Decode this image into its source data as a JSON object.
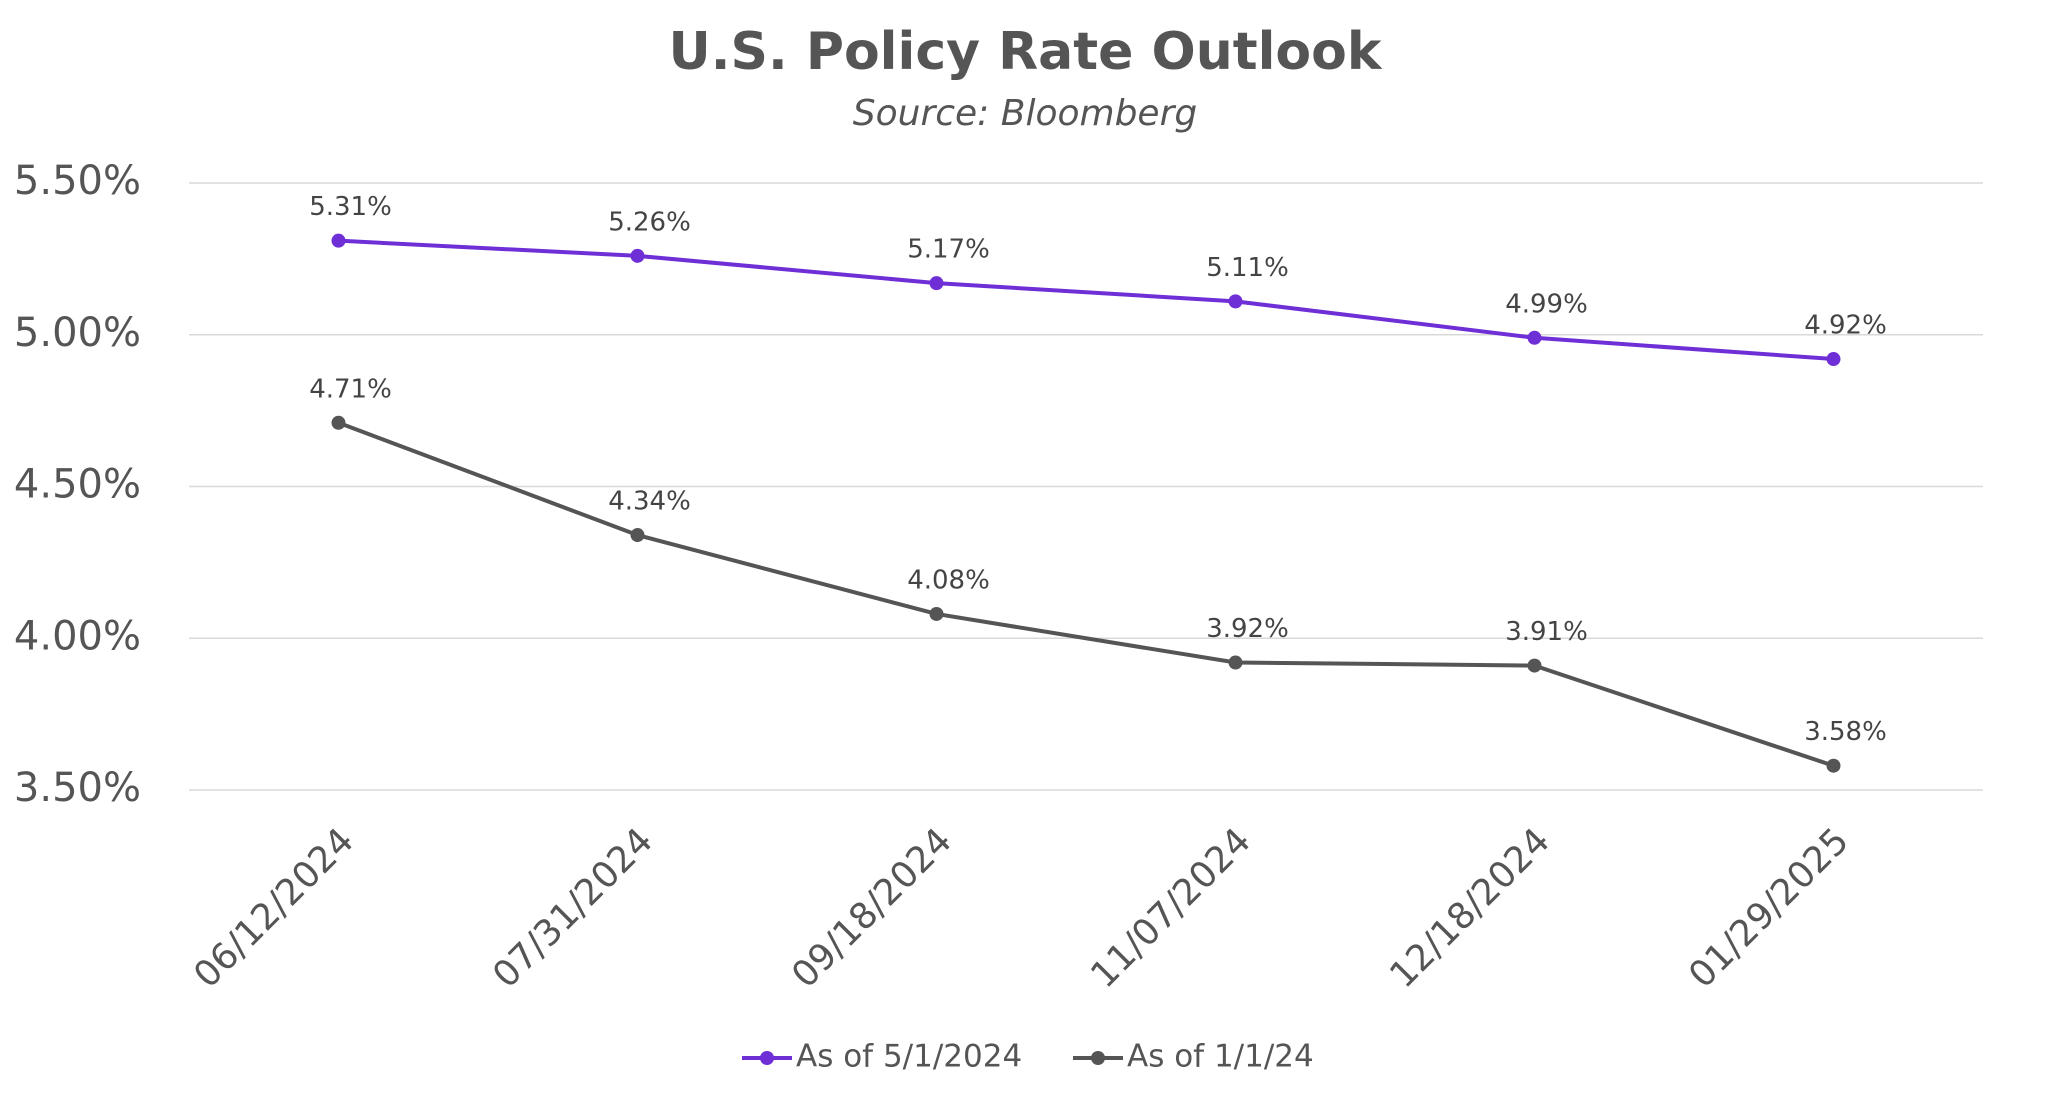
{
  "chart_data": {
    "type": "line",
    "title": "U.S. Policy Rate Outlook",
    "subtitle": "Source: Bloomberg",
    "categories": [
      "06/12/2024",
      "07/31/2024",
      "09/18/2024",
      "11/07/2024",
      "12/18/2024",
      "01/29/2025"
    ],
    "series": [
      {
        "name": "As of 5/1/2024",
        "color": "#6f2fd6",
        "values": [
          5.31,
          5.26,
          5.17,
          5.11,
          4.99,
          4.92
        ],
        "value_labels": [
          "5.31%",
          "5.26%",
          "5.17%",
          "5.11%",
          "4.99%",
          "4.92%"
        ]
      },
      {
        "name": "As of 1/1/24",
        "color": "#555555",
        "values": [
          4.71,
          4.34,
          4.08,
          3.92,
          3.91,
          3.58
        ],
        "value_labels": [
          "4.71%",
          "4.34%",
          "4.08%",
          "3.92%",
          "3.91%",
          "3.58%"
        ]
      }
    ],
    "ylim": [
      3.5,
      5.5
    ],
    "yticks": [
      {
        "value": 3.5,
        "label": "3.50%"
      },
      {
        "value": 4,
        "label": "4.00%"
      },
      {
        "value": 4.5,
        "label": "4.50%"
      },
      {
        "value": 5,
        "label": "5.00%"
      },
      {
        "value": 5.5,
        "label": "5.50%"
      }
    ],
    "grid": true,
    "legend": "bottom"
  }
}
